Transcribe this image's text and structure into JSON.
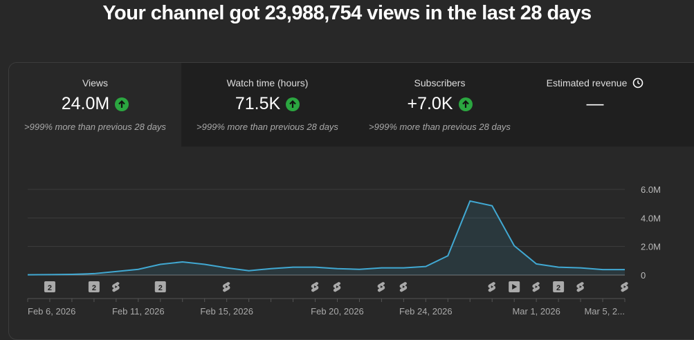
{
  "header": {
    "title": "Your channel got 23,988,754 views in the last 28 days"
  },
  "cards": [
    {
      "label": "Views",
      "value": "24.0M",
      "change": ">999% more than previous 28 days"
    },
    {
      "label": "Watch time (hours)",
      "value": "71.5K",
      "change": ">999% more than previous 28 days"
    },
    {
      "label": "Subscribers",
      "value": "+7.0K",
      "change": ">999% more than previous 28 days"
    },
    {
      "label": "Estimated revenue",
      "value": "—"
    }
  ],
  "chart_data": {
    "type": "line",
    "categories": [
      "Feb 6, 2026",
      null,
      null,
      null,
      null,
      "Feb 11, 2026",
      null,
      null,
      null,
      "Feb 15, 2026",
      null,
      null,
      null,
      null,
      "Feb 20, 2026",
      null,
      null,
      null,
      "Feb 24, 2026",
      null,
      null,
      null,
      null,
      "Mar 1, 2026",
      null,
      null,
      null,
      "Mar 5, 2..."
    ],
    "series": [
      {
        "name": "Views",
        "color": "#41a9d3",
        "values": [
          20000,
          30000,
          50000,
          100000,
          250000,
          400000,
          750000,
          920000,
          750000,
          500000,
          300000,
          450000,
          550000,
          550000,
          450000,
          400000,
          500000,
          500000,
          600000,
          1350000,
          5180000,
          4850000,
          2050000,
          780000,
          550000,
          500000,
          380000,
          380000
        ]
      }
    ],
    "ylim": [
      0,
      6000000
    ],
    "yticks": [
      {
        "value": 0,
        "label": "0"
      },
      {
        "value": 2000000,
        "label": "2.0M"
      },
      {
        "value": 4000000,
        "label": "4.0M"
      },
      {
        "value": 6000000,
        "label": "6.0M"
      }
    ],
    "grid": true,
    "badges": [
      "2",
      "2",
      "2",
      "2"
    ]
  }
}
